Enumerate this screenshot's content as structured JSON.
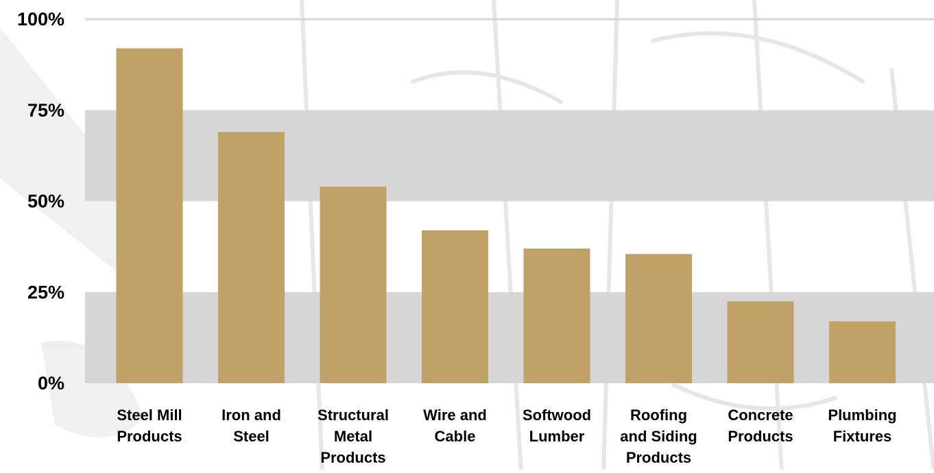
{
  "chart_data": {
    "type": "bar",
    "categories": [
      "Steel Mill Products",
      "Iron and Steel",
      "Structural Metal Products",
      "Wire and Cable",
      "Softwood Lumber",
      "Roofing and Siding Products",
      "Concrete Products",
      "Plumbing Fixtures"
    ],
    "values": [
      92,
      69,
      54,
      42,
      37,
      35.5,
      22.5,
      17
    ],
    "ylim": [
      0,
      100
    ],
    "ytick_values": [
      0,
      25,
      50,
      75,
      100
    ],
    "ytick_labels": [
      "0%",
      "25%",
      "50%",
      "75%",
      "100%"
    ],
    "bar_color": "#C1A266",
    "band_color": "#D6D6D6",
    "grid": true,
    "legend": "none",
    "title": "",
    "xlabel": "",
    "ylabel": ""
  }
}
